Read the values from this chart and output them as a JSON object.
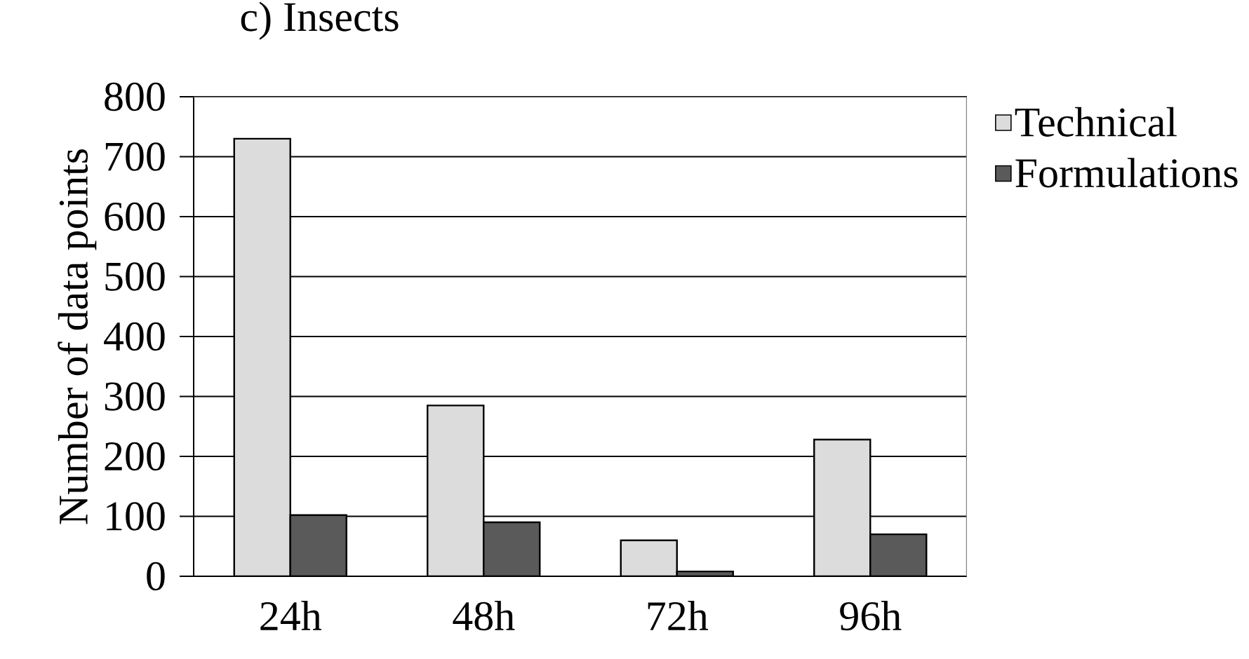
{
  "chart_data": {
    "type": "bar",
    "title": "c) Insects",
    "ylabel": "Number of data points",
    "categories": [
      "24h",
      "48h",
      "72h",
      "96h"
    ],
    "series": [
      {
        "name": "Technical",
        "color": "#dcdcdc",
        "values": [
          730,
          285,
          60,
          228
        ]
      },
      {
        "name": "Formulations",
        "color": "#5a5a5a",
        "values": [
          102,
          90,
          8,
          70
        ]
      }
    ],
    "ylim": [
      0,
      800
    ],
    "yticks": [
      0,
      100,
      200,
      300,
      400,
      500,
      600,
      700,
      800
    ],
    "grid": "y",
    "legend": "right"
  }
}
